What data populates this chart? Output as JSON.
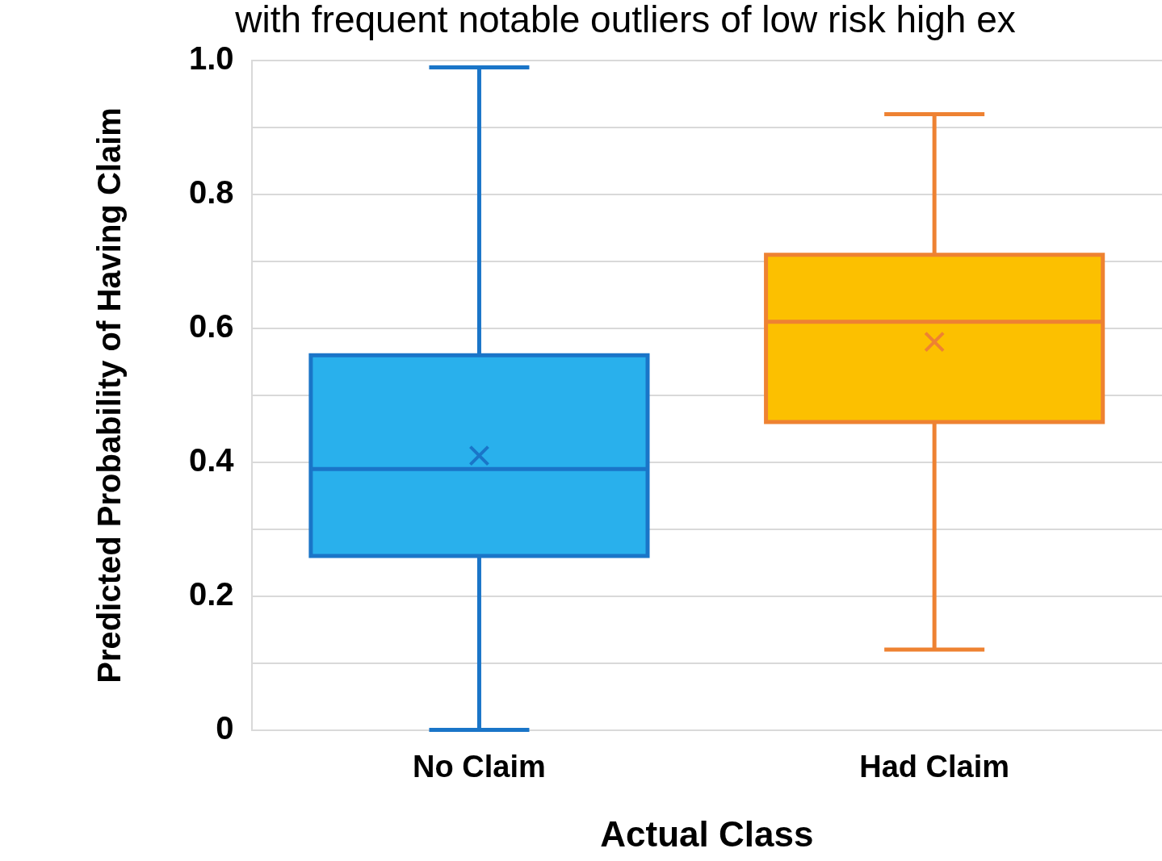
{
  "chart_data": {
    "type": "box",
    "subtitle": "with frequent notable outliers of low risk high ex",
    "ylabel": "Predicted Probability of Having Claim",
    "xlabel": "Actual Class",
    "categories": [
      "No Claim",
      "Had Claim"
    ],
    "ylim": [
      0,
      1
    ],
    "yticks": [
      0,
      {
        "value": 0.1,
        "label": null
      },
      0.2,
      {
        "value": 0.3,
        "label": null
      },
      0.4,
      {
        "value": 0.5,
        "label": null
      },
      0.6,
      {
        "value": 0.7,
        "label": null
      },
      0.8,
      {
        "value": 0.9,
        "label": null
      },
      {
        "value": 1,
        "label": "1.0"
      }
    ],
    "grid": "y",
    "marker": "cross",
    "series": [
      {
        "color": "#1a75c8",
        "colors": [
          "#29b0ec",
          null
        ],
        "boxes": [
          {
            "low": 0,
            "q1": 0.26,
            "median": 0.39,
            "q3": 0.56,
            "high": 0.99,
            "mean": 0.41
          },
          null
        ]
      },
      {
        "color": "#ee8232",
        "colors": [
          null,
          "#fcc000"
        ],
        "boxes": [
          null,
          {
            "low": 0.12,
            "q1": 0.46,
            "median": 0.61,
            "q3": 0.71,
            "high": 0.92,
            "mean": 0.58
          }
        ]
      }
    ]
  }
}
